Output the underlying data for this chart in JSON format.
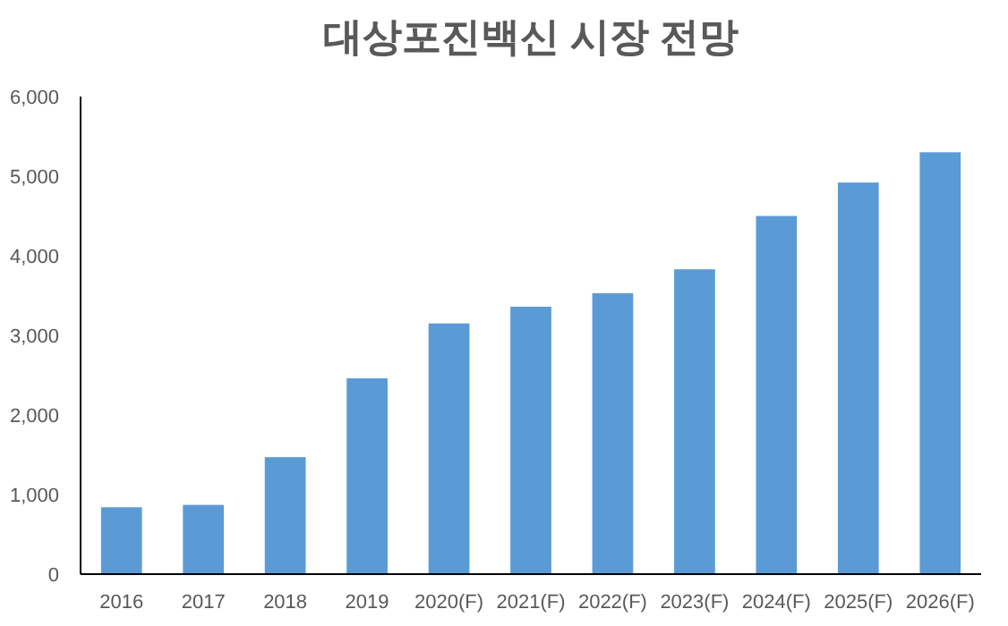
{
  "chart_data": {
    "type": "bar",
    "title": "대상포진백신 시장 전망",
    "categories": [
      "2016",
      "2017",
      "2018",
      "2019",
      "2020(F)",
      "2021(F)",
      "2022(F)",
      "2023(F)",
      "2024(F)",
      "2025(F)",
      "2026(F)"
    ],
    "values": [
      840,
      870,
      1470,
      2460,
      3150,
      3360,
      3530,
      3830,
      4500,
      4920,
      5300
    ],
    "color": "#5b9bd5",
    "ylim": [
      0,
      6000
    ],
    "yticks": [
      {
        "value": 0,
        "label": "0"
      },
      {
        "value": 1000,
        "label": "1,000"
      },
      {
        "value": 2000,
        "label": "2,000"
      },
      {
        "value": 3000,
        "label": "3,000"
      },
      {
        "value": 4000,
        "label": "4,000"
      },
      {
        "value": 5000,
        "label": "5,000"
      },
      {
        "value": 6000,
        "label": "6,000"
      }
    ],
    "grid": false
  }
}
